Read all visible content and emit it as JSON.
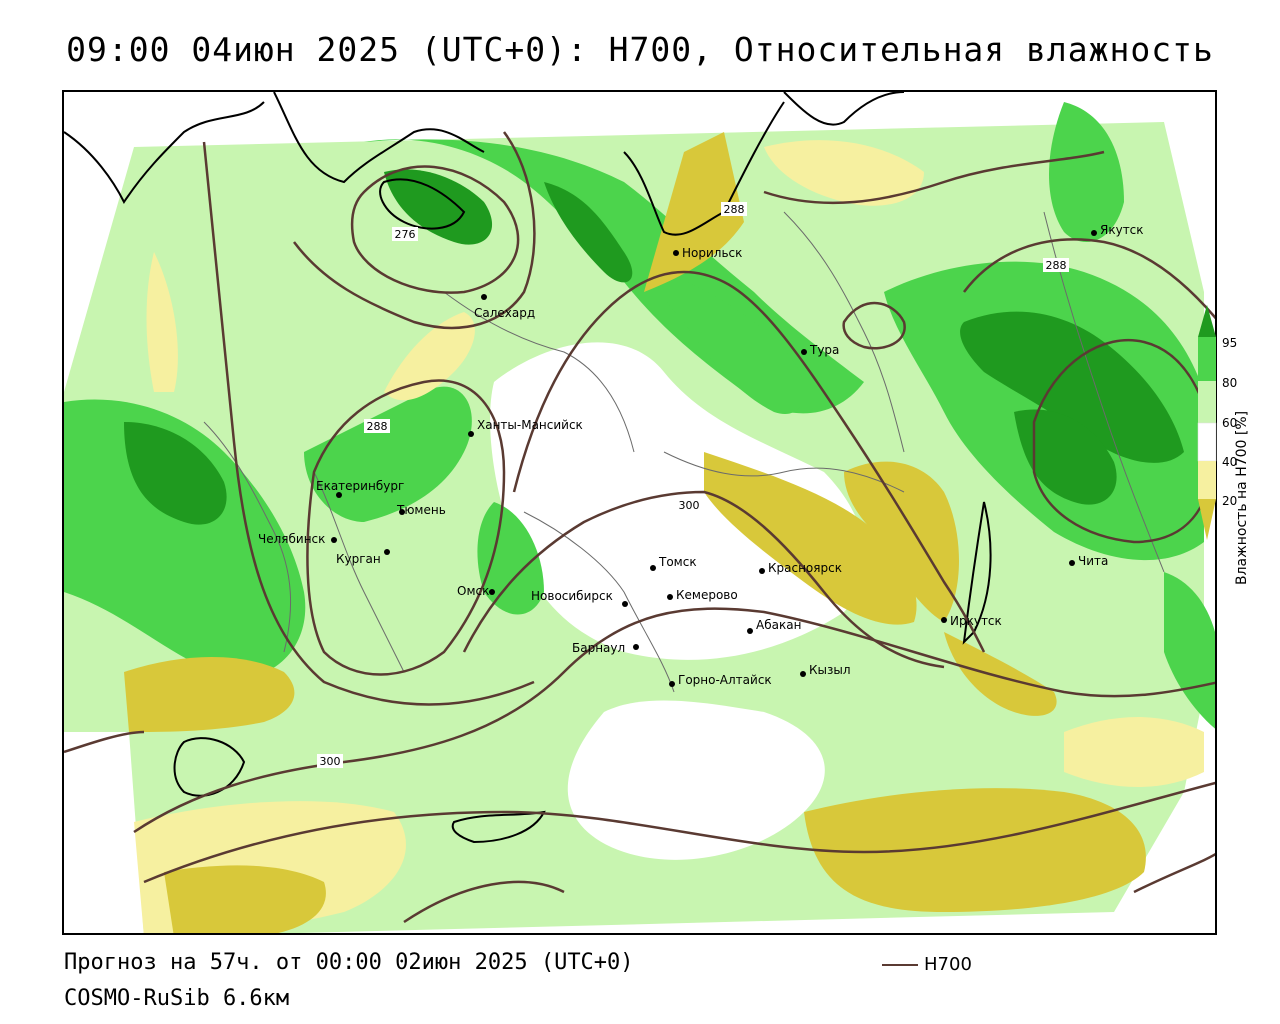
{
  "title": "09:00 04июн 2025 (UTC+0): H700, Относительная влажность",
  "footer": {
    "forecast": "Прогноз на 57ч. от 00:00 02июн 2025 (UTC+0)",
    "model": "COSMO-RuSib 6.6км"
  },
  "contour_key": {
    "label": "H700",
    "color": "#5a3a32"
  },
  "legend": {
    "title": "Влажность на H700 [%]",
    "ticks": [
      "95",
      "80",
      "60",
      "40",
      "20"
    ],
    "colors": [
      "#1f9a1f",
      "#4cd44c",
      "#c8f5b0",
      "#ffffff",
      "#f6f0a0",
      "#d8c83a"
    ]
  },
  "contour_labels": [
    "276",
    "288",
    "288",
    "288",
    "300",
    "300"
  ],
  "cities": [
    {
      "name": "Салехард"
    },
    {
      "name": "Норильск"
    },
    {
      "name": "Якутск"
    },
    {
      "name": "Тура"
    },
    {
      "name": "Ханты-Мансийск"
    },
    {
      "name": "Екатеринбург"
    },
    {
      "name": "Тюмень"
    },
    {
      "name": "Челябинск"
    },
    {
      "name": "Курган"
    },
    {
      "name": "Омск"
    },
    {
      "name": "Новосибирск"
    },
    {
      "name": "Томск"
    },
    {
      "name": "Кемерово"
    },
    {
      "name": "Красноярск"
    },
    {
      "name": "Абакан"
    },
    {
      "name": "Барнаул"
    },
    {
      "name": "Горно-Алтайск"
    },
    {
      "name": "Кызыл"
    },
    {
      "name": "Иркутск"
    },
    {
      "name": "Чита"
    }
  ]
}
